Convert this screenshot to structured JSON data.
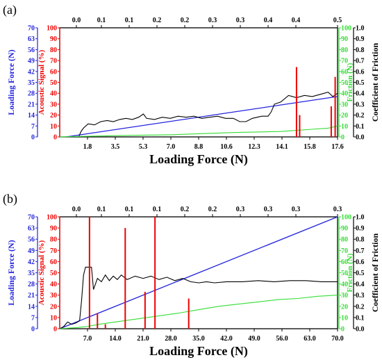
{
  "colors": {
    "axis": "#000000",
    "load": "#2222dd",
    "acoustic": "#ee0000",
    "friction": "#33dd33",
    "cof": "#000000"
  },
  "chart_data": [
    {
      "panel_label": "(a)",
      "type": "line",
      "xlabel": "Loading Force  (N)",
      "x_bottom_ticks": [
        "1.8",
        "3.5",
        "5.3",
        "7.0",
        "8.8",
        "10.6",
        "12.3",
        "14.1",
        "15.8",
        "17.6"
      ],
      "x_top_ticks": [
        "0.0",
        "0.1",
        "0.1",
        "0.2",
        "0.2",
        "0.3",
        "0.3",
        "0.4",
        "0.4",
        "0.5"
      ],
      "xlim": [
        0,
        17.6
      ],
      "axes": {
        "loading_force": {
          "label": "Loading Force (N)",
          "ticks": [
            "0",
            "7",
            "14",
            "21",
            "28",
            "35",
            "42",
            "49",
            "56",
            "63",
            "70"
          ],
          "lim": [
            0,
            70
          ]
        },
        "acoustic": {
          "label": "Acoustic Signal (%)",
          "ticks": [
            "0",
            "10",
            "20",
            "30",
            "40",
            "50",
            "60",
            "70",
            "80",
            "90",
            "100"
          ],
          "lim": [
            0,
            100
          ]
        },
        "friction": {
          "label": "Friction (N)",
          "ticks": [
            "0",
            "10",
            "20",
            "30",
            "40",
            "50",
            "60",
            "70",
            "80",
            "90",
            "100"
          ],
          "lim": [
            0,
            100
          ]
        },
        "cof": {
          "label": "Coefficient of Friction",
          "ticks": [
            "0.0",
            "0.1",
            "0.2",
            "0.3",
            "0.4",
            "0.5",
            "0.6",
            "0.7",
            "0.8",
            "0.9",
            "1.0"
          ],
          "lim": [
            0,
            1
          ]
        }
      },
      "series": [
        {
          "key": "load",
          "axis": "loading_force",
          "points": [
            [
              0.4,
              0
            ],
            [
              17.6,
              25.9
            ]
          ]
        },
        {
          "key": "cof",
          "axis": "cof",
          "points": [
            [
              0.0,
              0.0
            ],
            [
              1.2,
              0.0
            ],
            [
              1.35,
              0.05
            ],
            [
              1.5,
              0.08
            ],
            [
              1.8,
              0.12
            ],
            [
              2.2,
              0.11
            ],
            [
              2.6,
              0.14
            ],
            [
              3.0,
              0.15
            ],
            [
              3.4,
              0.14
            ],
            [
              3.8,
              0.16
            ],
            [
              4.2,
              0.17
            ],
            [
              4.6,
              0.16
            ],
            [
              5.0,
              0.18
            ],
            [
              5.3,
              0.21
            ],
            [
              5.5,
              0.17
            ],
            [
              6.0,
              0.16
            ],
            [
              6.5,
              0.18
            ],
            [
              7.0,
              0.17
            ],
            [
              7.5,
              0.19
            ],
            [
              8.0,
              0.18
            ],
            [
              8.5,
              0.19
            ],
            [
              9.0,
              0.17
            ],
            [
              9.5,
              0.18
            ],
            [
              10.0,
              0.19
            ],
            [
              10.5,
              0.17
            ],
            [
              11.0,
              0.17
            ],
            [
              11.4,
              0.14
            ],
            [
              11.8,
              0.14
            ],
            [
              12.2,
              0.17
            ],
            [
              12.8,
              0.19
            ],
            [
              13.2,
              0.19
            ],
            [
              13.4,
              0.23
            ],
            [
              13.6,
              0.3
            ],
            [
              14.0,
              0.32
            ],
            [
              14.5,
              0.38
            ],
            [
              15.0,
              0.36
            ],
            [
              15.5,
              0.38
            ],
            [
              16.0,
              0.37
            ],
            [
              16.5,
              0.39
            ],
            [
              17.0,
              0.41
            ],
            [
              17.3,
              0.37
            ],
            [
              17.6,
              0.4
            ]
          ]
        },
        {
          "key": "friction",
          "axis": "friction",
          "points": [
            [
              0.0,
              0.0
            ],
            [
              1.5,
              0.5
            ],
            [
              3.0,
              1.0
            ],
            [
              5.0,
              1.5
            ],
            [
              7.0,
              2.0
            ],
            [
              9.0,
              3.0
            ],
            [
              11.0,
              4.0
            ],
            [
              12.5,
              4.5
            ],
            [
              14.0,
              5.0
            ],
            [
              15.0,
              6.0
            ],
            [
              16.0,
              7.0
            ],
            [
              17.0,
              8.0
            ],
            [
              17.6,
              10.0
            ]
          ]
        },
        {
          "key": "acoustic",
          "axis": "acoustic",
          "spikes": [
            [
              15.0,
              64
            ],
            [
              15.2,
              20
            ],
            [
              17.2,
              28
            ],
            [
              17.45,
              55
            ]
          ]
        }
      ]
    },
    {
      "panel_label": "(b)",
      "type": "line",
      "xlabel": "Loading Force  (N)",
      "x_bottom_ticks": [
        "7.0",
        "14.0",
        "21.0",
        "28.0",
        "35.0",
        "42.0",
        "49.0",
        "56.0",
        "63.0",
        "70.0"
      ],
      "x_top_ticks": [
        "0.0",
        "0.1",
        "0.1",
        "0.1",
        "0.2",
        "0.2",
        "0.3",
        "0.3",
        "0.3",
        "0.3"
      ],
      "xlim": [
        0,
        70
      ],
      "axes": {
        "loading_force": {
          "label": "Loading Force (N)",
          "ticks": [
            "0",
            "7",
            "14",
            "21",
            "28",
            "35",
            "42",
            "49",
            "56",
            "63",
            "70"
          ],
          "lim": [
            0,
            70
          ]
        },
        "acoustic": {
          "label": "Acoustic Signal (%)",
          "ticks": [
            "0",
            "10",
            "20",
            "30",
            "40",
            "50",
            "60",
            "70",
            "80",
            "90",
            "100"
          ],
          "lim": [
            0,
            100
          ]
        },
        "friction": {
          "label": "Friction (N)",
          "ticks": [
            "0",
            "10",
            "20",
            "30",
            "40",
            "50",
            "60",
            "70",
            "80",
            "90",
            "100"
          ],
          "lim": [
            0,
            100
          ]
        },
        "cof": {
          "label": "Coefficient of Friction",
          "ticks": [
            "0.0",
            "0.1",
            "0.2",
            "0.3",
            "0.4",
            "0.5",
            "0.6",
            "0.7",
            "0.8",
            "0.9",
            "1.0"
          ],
          "lim": [
            0,
            1
          ]
        }
      },
      "series": [
        {
          "key": "load",
          "axis": "loading_force",
          "points": [
            [
              0.0,
              0.0
            ],
            [
              70.0,
              70.0
            ]
          ]
        },
        {
          "key": "cof",
          "axis": "cof",
          "points": [
            [
              0.0,
              0.0
            ],
            [
              1.0,
              0.02
            ],
            [
              2.0,
              0.06
            ],
            [
              3.0,
              0.04
            ],
            [
              4.0,
              0.05
            ],
            [
              5.0,
              0.07
            ],
            [
              5.5,
              0.25
            ],
            [
              6.0,
              0.48
            ],
            [
              6.5,
              0.55
            ],
            [
              8.0,
              0.55
            ],
            [
              8.5,
              0.35
            ],
            [
              9.5,
              0.45
            ],
            [
              10.5,
              0.42
            ],
            [
              11.5,
              0.48
            ],
            [
              12.5,
              0.43
            ],
            [
              13.5,
              0.47
            ],
            [
              14.5,
              0.44
            ],
            [
              15.5,
              0.48
            ],
            [
              17.0,
              0.44
            ],
            [
              19.0,
              0.47
            ],
            [
              21.0,
              0.45
            ],
            [
              23.0,
              0.47
            ],
            [
              25.0,
              0.44
            ],
            [
              27.0,
              0.46
            ],
            [
              29.0,
              0.43
            ],
            [
              31.0,
              0.45
            ],
            [
              33.0,
              0.42
            ],
            [
              35.0,
              0.41
            ],
            [
              37.0,
              0.42
            ],
            [
              39.0,
              0.41
            ],
            [
              42.0,
              0.42
            ],
            [
              46.0,
              0.42
            ],
            [
              50.0,
              0.43
            ],
            [
              54.0,
              0.42
            ],
            [
              58.0,
              0.43
            ],
            [
              62.0,
              0.43
            ],
            [
              66.0,
              0.42
            ],
            [
              70.0,
              0.42
            ]
          ]
        },
        {
          "key": "friction",
          "axis": "friction",
          "points": [
            [
              0.0,
              0.0
            ],
            [
              4.0,
              1.0
            ],
            [
              7.0,
              2.0
            ],
            [
              10.0,
              4.0
            ],
            [
              14.0,
              6.0
            ],
            [
              18.0,
              8.0
            ],
            [
              22.0,
              10.0
            ],
            [
              26.0,
              12.0
            ],
            [
              30.0,
              14.0
            ],
            [
              35.0,
              17.0
            ],
            [
              40.0,
              20.0
            ],
            [
              45.0,
              22.0
            ],
            [
              50.0,
              24.0
            ],
            [
              55.0,
              26.0
            ],
            [
              60.0,
              27.0
            ],
            [
              65.0,
              29.0
            ],
            [
              70.0,
              30.0
            ]
          ]
        },
        {
          "key": "acoustic",
          "axis": "acoustic",
          "spikes": [
            [
              7.5,
              100
            ],
            [
              9.5,
              14
            ],
            [
              11.5,
              4
            ],
            [
              16.5,
              90
            ],
            [
              21.5,
              33
            ],
            [
              24.0,
              100
            ],
            [
              32.5,
              27
            ]
          ]
        }
      ]
    }
  ]
}
